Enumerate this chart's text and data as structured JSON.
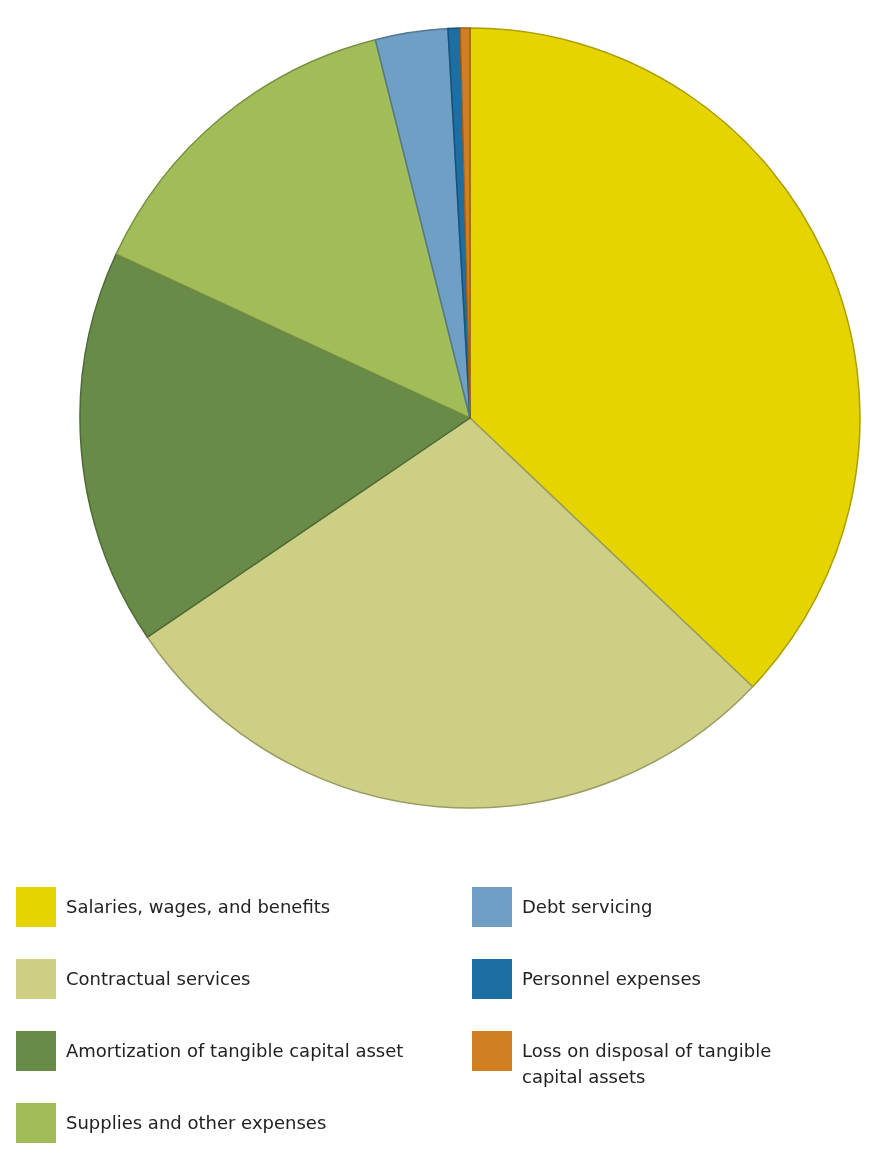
{
  "chart_data": {
    "type": "pie",
    "categories": [
      "Salaries, wages, and benefits",
      "Contractual services",
      "Amortization of tangible capital asset",
      "Supplies and other expenses",
      "Debt servicing",
      "Personnel expenses",
      "Loss on disposal of tangible capital assets"
    ],
    "values": [
      37.1,
      28.4,
      16.4,
      14.2,
      3.0,
      0.5,
      0.4
    ],
    "colors": [
      "#e5d400",
      "#cdd084",
      "#688c48",
      "#a0bd58",
      "#6f9fc4",
      "#1d6fa3",
      "#d08020"
    ],
    "legend": "bottom"
  }
}
